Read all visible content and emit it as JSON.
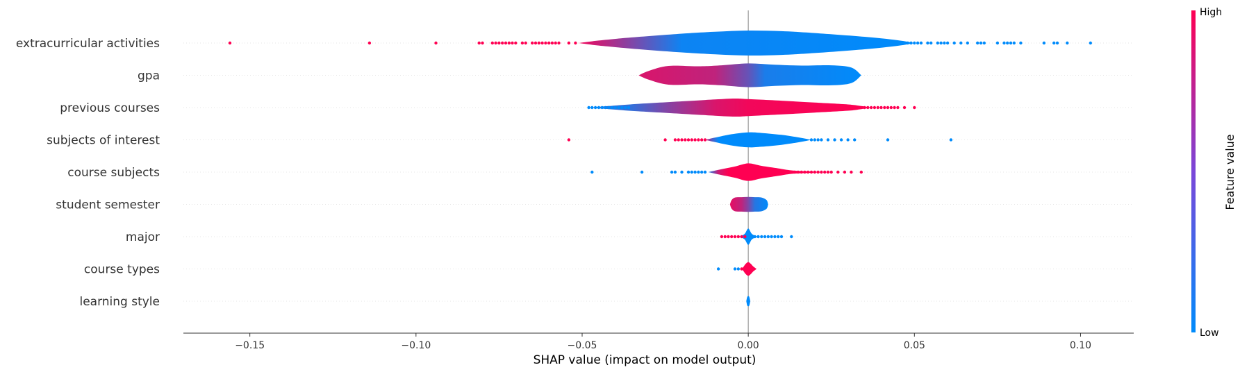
{
  "chart_data": {
    "type": "violin",
    "xlabel": "SHAP value (impact on model output)",
    "xlim": [
      -0.17,
      0.116
    ],
    "xticks": [
      -0.15,
      -0.1,
      -0.05,
      0.0,
      0.05,
      0.1
    ],
    "xtick_labels": [
      "−0.15",
      "−0.10",
      "−0.05",
      "0.00",
      "0.05",
      "0.10"
    ],
    "colorbar": {
      "title": "Feature value",
      "high_label": "High",
      "low_label": "Low",
      "high_color": "#ff0052",
      "low_color": "#008bfb"
    },
    "features": [
      {
        "name": "extracurricular activities",
        "violin": [
          [
            -0.051,
            0.0
          ],
          [
            -0.045,
            0.2
          ],
          [
            -0.035,
            0.45
          ],
          [
            -0.02,
            0.75
          ],
          [
            -0.01,
            0.9
          ],
          [
            0.0,
            1.0
          ],
          [
            0.01,
            0.95
          ],
          [
            0.02,
            0.8
          ],
          [
            0.035,
            0.5
          ],
          [
            0.045,
            0.22
          ],
          [
            0.05,
            0.0
          ]
        ],
        "color_stops": [
          [
            -0.05,
            0.92
          ],
          [
            -0.035,
            0.5
          ],
          [
            -0.02,
            0.05
          ],
          [
            0.05,
            0.0
          ]
        ],
        "points": [
          [
            -0.156,
            1
          ],
          [
            -0.114,
            1
          ],
          [
            -0.094,
            1
          ],
          [
            -0.081,
            1
          ],
          [
            -0.08,
            1
          ],
          [
            -0.077,
            1
          ],
          [
            -0.076,
            1
          ],
          [
            -0.075,
            1
          ],
          [
            -0.074,
            1
          ],
          [
            -0.073,
            1
          ],
          [
            -0.072,
            1
          ],
          [
            -0.071,
            1
          ],
          [
            -0.07,
            1
          ],
          [
            -0.068,
            1
          ],
          [
            -0.067,
            1
          ],
          [
            -0.065,
            1
          ],
          [
            -0.064,
            1
          ],
          [
            -0.063,
            1
          ],
          [
            -0.062,
            1
          ],
          [
            -0.061,
            1
          ],
          [
            -0.06,
            1
          ],
          [
            -0.059,
            1
          ],
          [
            -0.058,
            1
          ],
          [
            -0.057,
            1
          ],
          [
            -0.054,
            1
          ],
          [
            -0.052,
            1
          ],
          [
            0.046,
            0
          ],
          [
            0.047,
            0
          ],
          [
            0.048,
            0
          ],
          [
            0.049,
            0
          ],
          [
            0.05,
            0
          ],
          [
            0.051,
            0
          ],
          [
            0.052,
            0
          ],
          [
            0.054,
            0
          ],
          [
            0.055,
            0
          ],
          [
            0.057,
            0
          ],
          [
            0.058,
            0
          ],
          [
            0.059,
            0
          ],
          [
            0.06,
            0
          ],
          [
            0.062,
            0
          ],
          [
            0.064,
            0
          ],
          [
            0.066,
            0
          ],
          [
            0.069,
            0
          ],
          [
            0.07,
            0
          ],
          [
            0.071,
            0
          ],
          [
            0.075,
            0
          ],
          [
            0.077,
            0
          ],
          [
            0.078,
            0
          ],
          [
            0.079,
            0
          ],
          [
            0.08,
            0
          ],
          [
            0.082,
            0
          ],
          [
            0.089,
            0
          ],
          [
            0.092,
            0
          ],
          [
            0.093,
            0
          ],
          [
            0.096,
            0
          ],
          [
            0.103,
            0
          ]
        ]
      },
      {
        "name": "gpa",
        "violin": [
          [
            -0.033,
            0.0
          ],
          [
            -0.03,
            0.35
          ],
          [
            -0.024,
            0.75
          ],
          [
            -0.015,
            0.72
          ],
          [
            -0.008,
            0.8
          ],
          [
            0.0,
            0.95
          ],
          [
            0.008,
            0.85
          ],
          [
            0.016,
            0.78
          ],
          [
            0.025,
            0.8
          ],
          [
            0.031,
            0.62
          ],
          [
            0.034,
            0.0
          ]
        ],
        "color_stops": [
          [
            -0.033,
            0.85
          ],
          [
            -0.01,
            0.75
          ],
          [
            0.0,
            0.4
          ],
          [
            0.005,
            0.1
          ],
          [
            0.034,
            0.0
          ]
        ],
        "points": []
      },
      {
        "name": "previous courses",
        "violin": [
          [
            -0.048,
            0.0
          ],
          [
            -0.042,
            0.12
          ],
          [
            -0.033,
            0.3
          ],
          [
            -0.02,
            0.5
          ],
          [
            -0.01,
            0.65
          ],
          [
            -0.004,
            0.72
          ],
          [
            0.0,
            0.68
          ],
          [
            0.01,
            0.55
          ],
          [
            0.02,
            0.4
          ],
          [
            0.03,
            0.25
          ],
          [
            0.034,
            0.12
          ],
          [
            0.037,
            0.0
          ]
        ],
        "color_stops": [
          [
            -0.035,
            0.2
          ],
          [
            -0.025,
            0.5
          ],
          [
            -0.01,
            0.85
          ],
          [
            0.0,
            0.95
          ],
          [
            0.037,
            1.0
          ]
        ],
        "points": [
          [
            -0.048,
            0
          ],
          [
            -0.047,
            0
          ],
          [
            -0.046,
            0
          ],
          [
            -0.045,
            0
          ],
          [
            -0.044,
            0
          ],
          [
            -0.043,
            0
          ],
          [
            -0.042,
            0
          ],
          [
            -0.041,
            0
          ],
          [
            -0.04,
            0
          ],
          [
            -0.039,
            0
          ],
          [
            -0.038,
            0
          ],
          [
            -0.037,
            0
          ],
          [
            -0.036,
            0
          ],
          [
            0.035,
            1
          ],
          [
            0.036,
            1
          ],
          [
            0.037,
            1
          ],
          [
            0.038,
            1
          ],
          [
            0.039,
            1
          ],
          [
            0.04,
            1
          ],
          [
            0.041,
            1
          ],
          [
            0.042,
            1
          ],
          [
            0.043,
            1
          ],
          [
            0.044,
            1
          ],
          [
            0.045,
            1
          ],
          [
            0.047,
            1
          ],
          [
            0.05,
            1
          ]
        ]
      },
      {
        "name": "subjects of interest",
        "violin": [
          [
            -0.013,
            0.0
          ],
          [
            -0.01,
            0.18
          ],
          [
            -0.005,
            0.45
          ],
          [
            0.0,
            0.6
          ],
          [
            0.004,
            0.55
          ],
          [
            0.01,
            0.4
          ],
          [
            0.015,
            0.2
          ],
          [
            0.019,
            0.0
          ]
        ],
        "color_stops": [
          [
            -0.013,
            0.9
          ],
          [
            -0.011,
            0.35
          ],
          [
            -0.009,
            0.0
          ],
          [
            0.019,
            0.0
          ]
        ],
        "points": [
          [
            -0.054,
            1
          ],
          [
            -0.025,
            1
          ],
          [
            -0.022,
            1
          ],
          [
            -0.021,
            1
          ],
          [
            -0.02,
            1
          ],
          [
            -0.019,
            1
          ],
          [
            -0.018,
            1
          ],
          [
            -0.017,
            1
          ],
          [
            -0.016,
            1
          ],
          [
            -0.015,
            1
          ],
          [
            -0.014,
            1
          ],
          [
            -0.013,
            1
          ],
          [
            0.019,
            0
          ],
          [
            0.02,
            0
          ],
          [
            0.021,
            0
          ],
          [
            0.022,
            0
          ],
          [
            0.024,
            0
          ],
          [
            0.026,
            0
          ],
          [
            0.028,
            0
          ],
          [
            0.03,
            0
          ],
          [
            0.032,
            0
          ],
          [
            0.042,
            0
          ],
          [
            0.061,
            0
          ]
        ]
      },
      {
        "name": "course subjects",
        "violin": [
          [
            -0.012,
            0.0
          ],
          [
            -0.009,
            0.18
          ],
          [
            -0.004,
            0.45
          ],
          [
            0.0,
            0.7
          ],
          [
            0.004,
            0.5
          ],
          [
            0.009,
            0.3
          ],
          [
            0.013,
            0.14
          ],
          [
            0.018,
            0.06
          ],
          [
            0.022,
            0.0
          ]
        ],
        "color_stops": [
          [
            -0.012,
            0.1
          ],
          [
            -0.009,
            0.8
          ],
          [
            -0.006,
            1.0
          ],
          [
            0.022,
            1.0
          ]
        ],
        "points": [
          [
            -0.047,
            0
          ],
          [
            -0.032,
            0
          ],
          [
            -0.023,
            0
          ],
          [
            -0.022,
            0
          ],
          [
            -0.02,
            0
          ],
          [
            -0.018,
            0
          ],
          [
            -0.017,
            0
          ],
          [
            -0.016,
            0
          ],
          [
            -0.015,
            0
          ],
          [
            -0.014,
            0
          ],
          [
            -0.013,
            0
          ],
          [
            0.012,
            1
          ],
          [
            0.014,
            1
          ],
          [
            0.015,
            1
          ],
          [
            0.016,
            1
          ],
          [
            0.017,
            1
          ],
          [
            0.018,
            1
          ],
          [
            0.019,
            1
          ],
          [
            0.02,
            1
          ],
          [
            0.021,
            1
          ],
          [
            0.022,
            1
          ],
          [
            0.023,
            1
          ],
          [
            0.024,
            1
          ],
          [
            0.025,
            1
          ],
          [
            0.027,
            1
          ],
          [
            0.029,
            1
          ],
          [
            0.031,
            1
          ],
          [
            0.034,
            1
          ]
        ]
      },
      {
        "name": "student semester",
        "violin": [
          [
            -0.0055,
            0.0
          ],
          [
            -0.005,
            0.35
          ],
          [
            -0.004,
            0.55
          ],
          [
            -0.002,
            0.58
          ],
          [
            0.0,
            0.6
          ],
          [
            0.002,
            0.58
          ],
          [
            0.004,
            0.55
          ],
          [
            0.0055,
            0.35
          ],
          [
            0.006,
            0.0
          ]
        ],
        "color_stops": [
          [
            -0.0055,
            0.9
          ],
          [
            -0.002,
            0.75
          ],
          [
            0.0,
            0.5
          ],
          [
            0.002,
            0.15
          ],
          [
            0.006,
            0.0
          ]
        ],
        "points": []
      },
      {
        "name": "major",
        "violin": [
          [
            -0.003,
            0.0
          ],
          [
            -0.002,
            0.08
          ],
          [
            -0.001,
            0.25
          ],
          [
            0.0,
            0.65
          ],
          [
            0.001,
            0.25
          ],
          [
            0.002,
            0.08
          ],
          [
            0.003,
            0.0
          ]
        ],
        "color_stops": [
          [
            -0.003,
            0.0
          ],
          [
            0.003,
            0.0
          ]
        ],
        "points": [
          [
            -0.008,
            1
          ],
          [
            -0.007,
            1
          ],
          [
            -0.006,
            1
          ],
          [
            -0.005,
            1
          ],
          [
            -0.004,
            1
          ],
          [
            -0.003,
            1
          ],
          [
            -0.002,
            1
          ],
          [
            -0.001,
            1
          ],
          [
            0.002,
            0
          ],
          [
            0.003,
            0
          ],
          [
            0.004,
            0
          ],
          [
            0.005,
            0
          ],
          [
            0.006,
            0
          ],
          [
            0.007,
            0
          ],
          [
            0.008,
            0
          ],
          [
            0.009,
            0
          ],
          [
            0.01,
            0
          ],
          [
            0.013,
            0
          ]
        ]
      },
      {
        "name": "course types",
        "violin": [
          [
            -0.002,
            0.0
          ],
          [
            -0.0015,
            0.15
          ],
          [
            -0.0008,
            0.4
          ],
          [
            0.0,
            0.55
          ],
          [
            0.0008,
            0.4
          ],
          [
            0.0015,
            0.2
          ],
          [
            0.0025,
            0.0
          ]
        ],
        "color_stops": [
          [
            -0.002,
            1.0
          ],
          [
            0.0025,
            1.0
          ]
        ],
        "points": [
          [
            -0.009,
            0
          ],
          [
            -0.004,
            0
          ],
          [
            -0.003,
            0
          ],
          [
            -0.002,
            1
          ]
        ]
      },
      {
        "name": "learning style",
        "violin": [
          [
            -0.0006,
            0.0
          ],
          [
            -0.0003,
            0.35
          ],
          [
            0.0,
            0.4
          ],
          [
            0.0003,
            0.35
          ],
          [
            0.0006,
            0.0
          ]
        ],
        "color_stops": [
          [
            -0.0006,
            0.0
          ],
          [
            0.0006,
            0.0
          ]
        ],
        "points": [
          [
            0.0,
            0
          ]
        ]
      }
    ]
  }
}
